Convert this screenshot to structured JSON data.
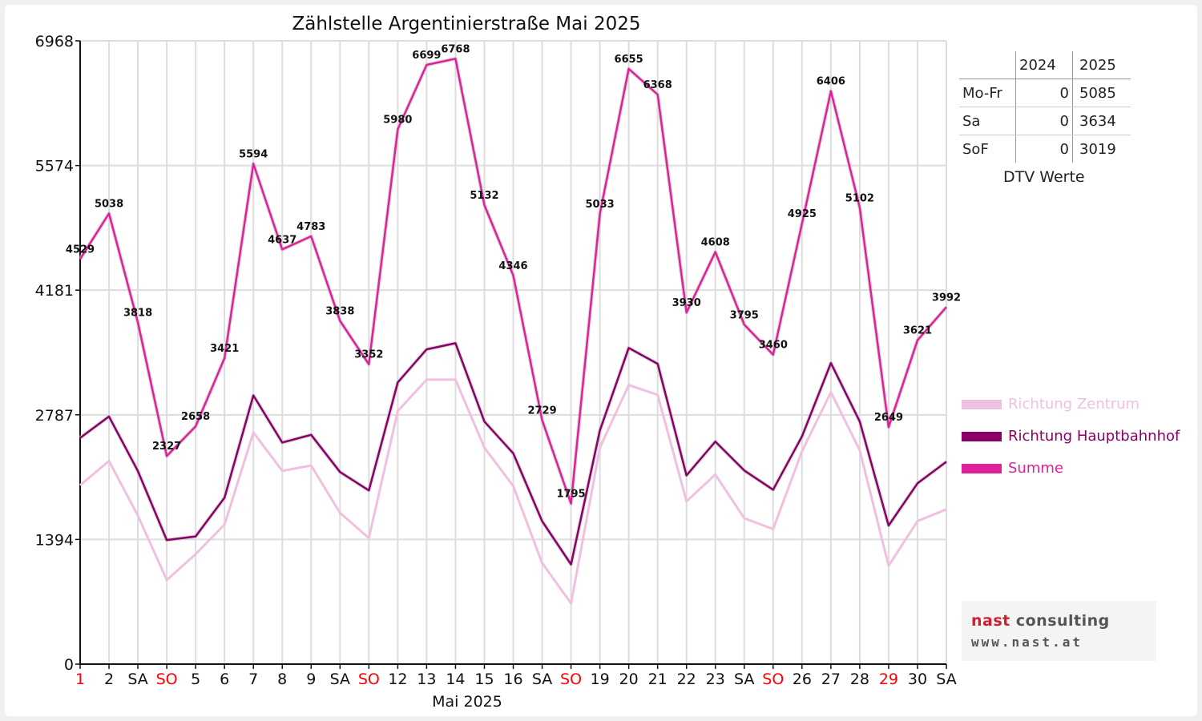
{
  "chart_data": {
    "type": "line",
    "title": "Zählstelle Argentinierstraße Mai 2025",
    "xlabel": "Mai 2025",
    "ylabel": "",
    "ylim": [
      0,
      6968
    ],
    "yticks": [
      0,
      1394,
      2787,
      4181,
      5574,
      6968
    ],
    "categories": [
      "1",
      "2",
      "SA",
      "SO",
      "5",
      "6",
      "7",
      "8",
      "9",
      "SA",
      "SO",
      "12",
      "13",
      "14",
      "15",
      "16",
      "SA",
      "SO",
      "19",
      "20",
      "21",
      "22",
      "23",
      "SA",
      "SO",
      "26",
      "27",
      "28",
      "29",
      "30",
      "SA"
    ],
    "holiday_indices": [
      0,
      3,
      10,
      17,
      24,
      28
    ],
    "holiday_color": "#ff0000",
    "series": [
      {
        "name": "Richtung Zentrum",
        "color": "#f0c0e0",
        "values": [
          2000,
          2270,
          1660,
          940,
          1230,
          1560,
          2590,
          2160,
          2220,
          1690,
          1410,
          2830,
          3180,
          3180,
          2420,
          1990,
          1130,
          680,
          2420,
          3120,
          3010,
          1820,
          2120,
          1630,
          1510,
          2380,
          3040,
          2390,
          1100,
          1600,
          1730
        ]
      },
      {
        "name": "Richtung Hauptbahnhof",
        "color": "#8b0066",
        "values": [
          2529,
          2768,
          2158,
          1387,
          1428,
          1861,
          3004,
          2477,
          2563,
          2148,
          1942,
          3150,
          3519,
          3588,
          2712,
          2356,
          1599,
          1115,
          2613,
          3535,
          3358,
          2110,
          2488,
          2165,
          1950,
          2545,
          3366,
          2712,
          1549,
          2021,
          2262
        ]
      },
      {
        "name": "Summe",
        "color": "#e0219a",
        "values": [
          4529,
          5038,
          3818,
          2327,
          2658,
          3421,
          5594,
          4637,
          4783,
          3838,
          3352,
          5980,
          6699,
          6768,
          5132,
          4346,
          2729,
          1795,
          5033,
          6655,
          6368,
          3930,
          4608,
          3795,
          3460,
          4925,
          6406,
          5102,
          2649,
          3621,
          3992
        ]
      }
    ],
    "data_labels": [
      4529,
      5038,
      3818,
      2327,
      2658,
      3421,
      5594,
      4637,
      4783,
      3838,
      3352,
      5980,
      6699,
      6768,
      5132,
      4346,
      2729,
      1795,
      5033,
      6655,
      6368,
      3930,
      4608,
      3795,
      3460,
      4925,
      6406,
      5102,
      2649,
      3621,
      3992
    ],
    "legend_placement": "right",
    "grid": true
  },
  "dtv_table": {
    "headers": [
      "",
      "2024",
      "2025"
    ],
    "rows": [
      {
        "label": "Mo-Fr",
        "v2024": "0",
        "v2025": "5085"
      },
      {
        "label": "Sa",
        "v2024": "0",
        "v2025": "3634"
      },
      {
        "label": "SoF",
        "v2024": "0",
        "v2025": "3019"
      }
    ],
    "caption": "DTV Werte"
  },
  "logo": {
    "line1_a": "nast",
    "line1_b": " consulting",
    "line2": "www.nast.at"
  },
  "colors": {
    "zentrum": "#f0c0e0",
    "hauptbahnhof": "#8b0066",
    "summe": "#e0219a",
    "grid": "#dddddd"
  }
}
